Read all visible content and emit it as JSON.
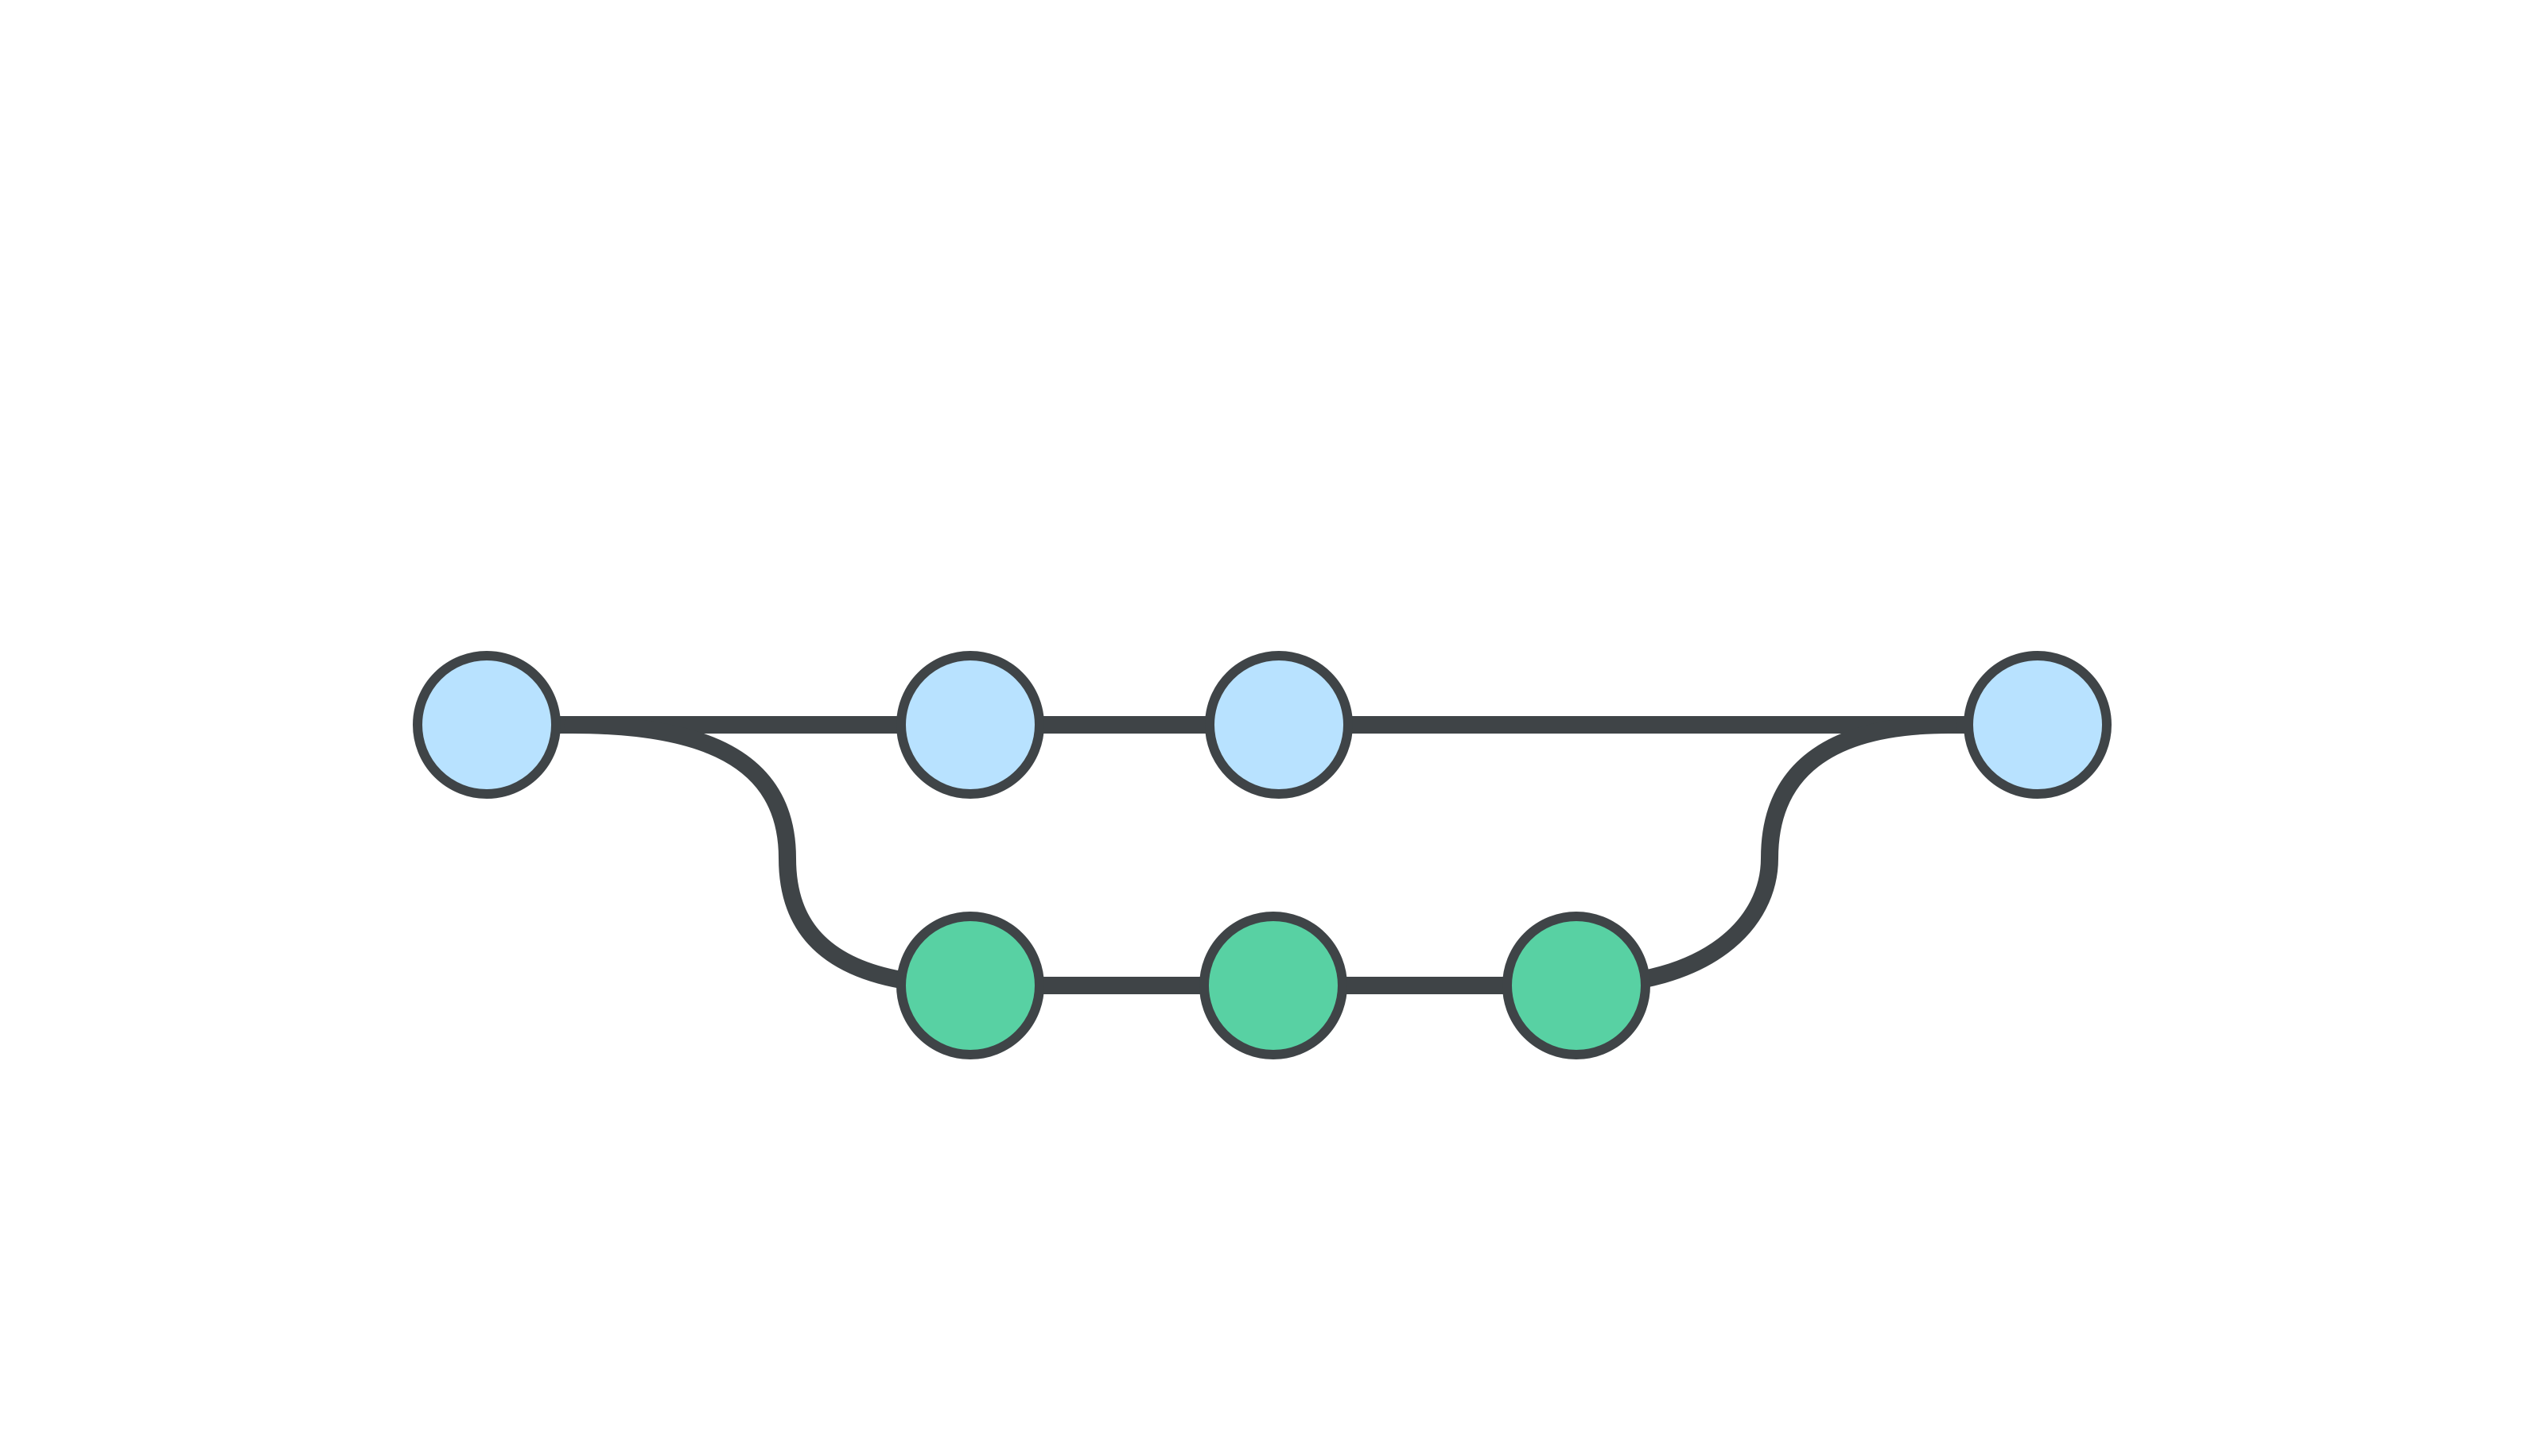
{
  "diagram": {
    "type": "git-branch-graph",
    "colors": {
      "background": "#ffffff",
      "line": "#3f4447",
      "main_commit_fill": "#b8e2ff",
      "feature_commit_fill": "#58d1a3",
      "commit_stroke": "#3f4447"
    },
    "branches": [
      {
        "role": "main",
        "commit_count": 4
      },
      {
        "role": "feature",
        "commit_count": 3
      }
    ],
    "edges": [
      {
        "type": "branch-off",
        "from_branch": "main",
        "from_commit": 1,
        "to_branch": "feature",
        "to_commit": 1
      },
      {
        "type": "merge",
        "from_branch": "feature",
        "from_commit": 3,
        "to_branch": "main",
        "to_commit": 4
      }
    ]
  }
}
